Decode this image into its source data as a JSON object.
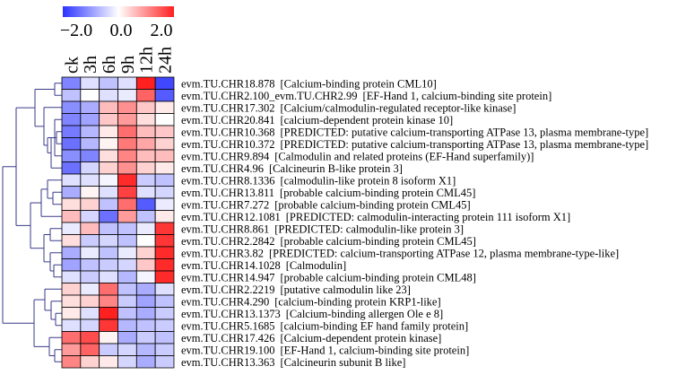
{
  "chart_data": {
    "type": "heatmap",
    "color_scale": {
      "min": -2.0,
      "mid": 0.0,
      "max": 2.0,
      "tick_labels": [
        "−2.0",
        "0.0",
        "2.0"
      ],
      "low_color": "#2b33ff",
      "mid_color": "#ffffff",
      "high_color": "#ff2020"
    },
    "columns": [
      "ck",
      "3h",
      "6h",
      "9h",
      "12h",
      "24h"
    ],
    "rows": [
      {
        "gene": "evm.TU.CHR18.878",
        "annotation": "[Calcium-binding protein CML10]"
      },
      {
        "gene": "evm.TU.CHR2.100_evm.TU.CHR2.99",
        "annotation": "[EF-Hand 1, calcium-binding site protein]"
      },
      {
        "gene": "evm.TU.CHR17.302",
        "annotation": "[Calcium/calmodulin-regulated receptor-like kinase]"
      },
      {
        "gene": "evm.TU.CHR20.841",
        "annotation": "[calcium-dependent protein kinase 10]"
      },
      {
        "gene": "evm.TU.CHR10.368",
        "annotation": "[PREDICTED: putative calcium-transporting ATPase 13, plasma membrane-type]"
      },
      {
        "gene": "evm.TU.CHR10.372",
        "annotation": "[PREDICTED: putative calcium-transporting ATPase 13, plasma membrane-type]"
      },
      {
        "gene": "evm.TU.CHR9.894",
        "annotation": "[Calmodulin and related proteins (EF-Hand superfamily)]"
      },
      {
        "gene": "evm.TU.CHR4.96",
        "annotation": "[Calcineurin B-like protein 3]"
      },
      {
        "gene": "evm.TU.CHR8.1336",
        "annotation": "[calmodulin-like protein 8 isoform X1]"
      },
      {
        "gene": "evm.TU.CHR13.811",
        "annotation": "[probable calcium-binding protein CML45]"
      },
      {
        "gene": "evm.TU.CHR7.272",
        "annotation": "[probable calcium-binding protein CML45]"
      },
      {
        "gene": "evm.TU.CHR12.1081",
        "annotation": "[PREDICTED: calmodulin-interacting protein 111 isoform X1]"
      },
      {
        "gene": "evm.TU.CHR8.861",
        "annotation": "[PREDICTED: calmodulin-like protein 3]"
      },
      {
        "gene": "evm.TU.CHR2.2842",
        "annotation": "[probable calcium-binding protein CML45]"
      },
      {
        "gene": "evm.TU.CHR3.82",
        "annotation": "[PREDICTED: calcium-transporting ATPase 12, plasma membrane-type-like]"
      },
      {
        "gene": "evm.TU.CHR14.1028",
        "annotation": "[Calmodulin]"
      },
      {
        "gene": "evm.TU.CHR14.947",
        "annotation": "[probable calcium-binding protein CML48]"
      },
      {
        "gene": "evm.TU.CHR2.2219",
        "annotation": "[putative calmodulin like 23]"
      },
      {
        "gene": "evm.TU.CHR4.290",
        "annotation": "[calcium-binding protein KRP1-like]"
      },
      {
        "gene": "evm.TU.CHR13.1373",
        "annotation": "[Calcium-binding allergen Ole e 8]"
      },
      {
        "gene": "evm.TU.CHR5.1685",
        "annotation": "[calcium-binding EF hand family protein]"
      },
      {
        "gene": "evm.TU.CHR17.426",
        "annotation": "[Calcium-dependent protein kinase]"
      },
      {
        "gene": "evm.TU.CHR19.100",
        "annotation": "[EF-Hand 1, calcium-binding site protein]"
      },
      {
        "gene": "evm.TU.CHR13.363",
        "annotation": "[Calcineurin subunit B like]"
      }
    ],
    "values": [
      [
        -1.2,
        -0.3,
        -0.6,
        -0.3,
        2.0,
        -1.8
      ],
      [
        -0.6,
        0.0,
        -0.3,
        -0.2,
        1.4,
        -1.6
      ],
      [
        -1.1,
        -0.8,
        0.6,
        1.0,
        0.5,
        0.2
      ],
      [
        -1.2,
        -0.9,
        0.5,
        0.9,
        0.3,
        0.0
      ],
      [
        -1.3,
        -0.7,
        0.2,
        1.3,
        0.6,
        0.5
      ],
      [
        -1.4,
        -0.7,
        0.1,
        1.2,
        0.8,
        0.4
      ],
      [
        -1.1,
        -1.2,
        0.3,
        1.1,
        0.6,
        0.6
      ],
      [
        -1.4,
        -0.4,
        0.4,
        1.0,
        0.4,
        0.2
      ],
      [
        -0.3,
        -0.3,
        -0.1,
        1.9,
        -0.5,
        -0.6
      ],
      [
        -0.8,
        0.1,
        -0.3,
        1.7,
        -0.3,
        -0.4
      ],
      [
        0.3,
        0.4,
        -0.6,
        1.3,
        -1.6,
        -0.2
      ],
      [
        0.6,
        -0.4,
        -1.4,
        0.9,
        -0.6,
        0.2
      ],
      [
        -0.2,
        0.6,
        -0.6,
        -0.6,
        -0.2,
        1.8
      ],
      [
        0.3,
        -0.5,
        -0.4,
        -0.6,
        0.0,
        1.8
      ],
      [
        -0.8,
        -0.2,
        -0.6,
        -0.2,
        0.4,
        1.9
      ],
      [
        -0.9,
        -0.6,
        -0.5,
        -0.4,
        0.5,
        1.9
      ],
      [
        -0.3,
        -0.5,
        -0.3,
        -0.7,
        -0.1,
        1.9
      ],
      [
        0.4,
        -0.2,
        1.3,
        -0.6,
        -0.8,
        -0.3
      ],
      [
        0.3,
        0.4,
        1.1,
        -0.5,
        -0.9,
        -0.6
      ],
      [
        0.2,
        -0.3,
        2.0,
        -0.6,
        -0.8,
        -0.5
      ],
      [
        -0.3,
        -0.4,
        1.8,
        -0.7,
        -0.6,
        -0.5
      ],
      [
        1.3,
        1.6,
        0.1,
        -0.8,
        -0.5,
        -0.6
      ],
      [
        0.9,
        1.4,
        -0.5,
        -0.4,
        -0.7,
        -0.5
      ],
      [
        1.1,
        0.4,
        0.2,
        -0.4,
        -0.8,
        -0.5
      ]
    ]
  }
}
